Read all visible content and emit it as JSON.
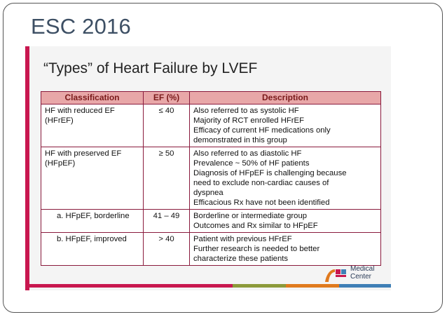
{
  "slide": {
    "title": "ESC 2016"
  },
  "content": {
    "heading": "“Types” of Heart Failure by LVEF"
  },
  "table": {
    "headers": {
      "classification": "Classification",
      "ef": "EF (%)",
      "description": "Description"
    },
    "rows": [
      {
        "classification": [
          "HF with reduced EF",
          "(HFrEF)"
        ],
        "ef": "≤ 40",
        "description": [
          "Also referred to as systolic HF",
          "Majority of RCT enrolled HFrEF",
          "Efficacy of current HF medications only",
          "demonstrated in this group"
        ]
      },
      {
        "classification": [
          "HF with preserved EF",
          "(HFpEF)"
        ],
        "ef": "≥ 50",
        "description": [
          "Also referred to as diastolic HF",
          "Prevalence ~ 50% of HF patients",
          "Diagnosis of HFpEF is challenging because",
          "need to exclude non-cardiac causes of",
          "dyspnea",
          "Efficacious Rx have not been identified"
        ]
      },
      {
        "classification": [
          "a. HFpEF, borderline"
        ],
        "ef": "41 – 49",
        "description": [
          "Borderline or intermediate group",
          "Outcomes and Rx similar to HFpEF"
        ]
      },
      {
        "classification": [
          "b. HFpEF, improved"
        ],
        "ef": "> 40",
        "description": [
          "Patient with previous HFrEF",
          "Further research is needed to better",
          "characterize these patients"
        ]
      }
    ]
  },
  "logo": {
    "line1": "Medical",
    "line2": "Center"
  },
  "colors": {
    "accent": "#c8174f",
    "header_fill": "#e8a7a8",
    "table_border": "#8a1b3d",
    "title_text": "#3d4f64"
  }
}
